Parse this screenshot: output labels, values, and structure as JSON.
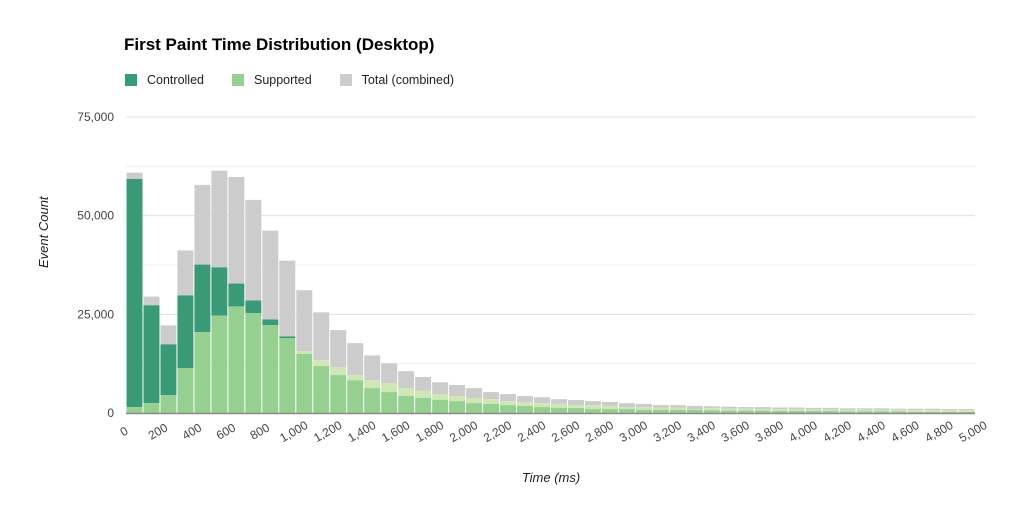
{
  "chart_data": {
    "type": "bar",
    "stacked": true,
    "title": "First Paint Time Distribution (Desktop)",
    "xlabel": "Time (ms)",
    "ylabel": "Event Count",
    "ylim": [
      0,
      75000
    ],
    "yticks": [
      0,
      25000,
      50000,
      75000
    ],
    "ytick_labels": [
      "0",
      "25,000",
      "50,000",
      "75,000"
    ],
    "xlim": [
      0,
      5000
    ],
    "xticks": [
      0,
      200,
      400,
      600,
      800,
      1000,
      1200,
      1400,
      1600,
      1800,
      2000,
      2200,
      2400,
      2600,
      2800,
      3000,
      3200,
      3400,
      3600,
      3800,
      4000,
      4200,
      4400,
      4600,
      4800,
      5000
    ],
    "xtick_labels": [
      "0",
      "200",
      "400",
      "600",
      "800",
      "1,000",
      "1,200",
      "1,400",
      "1,600",
      "1,800",
      "2,000",
      "2,200",
      "2,400",
      "2,600",
      "2,800",
      "3,000",
      "3,200",
      "3,400",
      "3,600",
      "3,800",
      "4,000",
      "4,200",
      "4,400",
      "4,600",
      "4,800",
      "5,000"
    ],
    "bin_width_ms": 100,
    "grid": true,
    "legend_position": "top-left",
    "legend": [
      {
        "name": "Controlled",
        "color": "#3a9a78"
      },
      {
        "name": "Supported",
        "color": "#96d091"
      },
      {
        "name": "Total (combined)",
        "color": "#cccccc"
      }
    ],
    "overlap_color": "#cfe6b6",
    "bins_start_ms": [
      0,
      100,
      200,
      300,
      400,
      500,
      600,
      700,
      800,
      900,
      1000,
      1100,
      1200,
      1300,
      1400,
      1500,
      1600,
      1700,
      1800,
      1900,
      2000,
      2100,
      2200,
      2300,
      2400,
      2500,
      2600,
      2700,
      2800,
      2900,
      3000,
      3100,
      3200,
      3300,
      3400,
      3500,
      3600,
      3700,
      3800,
      3900,
      4000,
      4100,
      4200,
      4300,
      4400,
      4500,
      4600,
      4700,
      4800,
      4900
    ],
    "series": [
      {
        "name": "Supported",
        "values": [
          1500,
          2500,
          4500,
          11400,
          20500,
          24700,
          27000,
          25300,
          22300,
          19000,
          15000,
          11900,
          9600,
          8300,
          6300,
          5300,
          4300,
          3800,
          3300,
          3000,
          2500,
          2300,
          2000,
          1800,
          1500,
          1300,
          1300,
          1000,
          1000,
          1000,
          800,
          800,
          800,
          800,
          700,
          600,
          600,
          600,
          500,
          500,
          500,
          500,
          400,
          400,
          400,
          400,
          300,
          300,
          300,
          300
        ]
      },
      {
        "name": "Supported (overlap band)",
        "values": [
          0,
          0,
          0,
          0,
          0,
          0,
          0,
          0,
          0,
          0,
          700,
          1500,
          2000,
          1300,
          2000,
          2300,
          2000,
          1800,
          1500,
          1300,
          1300,
          1200,
          1000,
          1000,
          1000,
          1000,
          700,
          1000,
          800,
          500,
          700,
          500,
          500,
          200,
          500,
          500,
          500,
          400,
          500,
          400,
          400,
          400,
          400,
          400,
          400,
          400,
          400,
          400,
          400,
          400
        ]
      },
      {
        "name": "Controlled",
        "values": [
          57800,
          24800,
          12900,
          18400,
          17100,
          12200,
          5800,
          3200,
          1400,
          400,
          0,
          0,
          0,
          0,
          0,
          0,
          0,
          0,
          0,
          0,
          0,
          0,
          0,
          0,
          0,
          0,
          0,
          0,
          0,
          0,
          0,
          0,
          0,
          0,
          0,
          0,
          0,
          0,
          0,
          0,
          0,
          0,
          0,
          0,
          0,
          0,
          0,
          0,
          0,
          0
        ]
      },
      {
        "name": "Total (combined)",
        "values": [
          60900,
          29500,
          22200,
          41200,
          57800,
          61400,
          59800,
          54000,
          46200,
          38600,
          31100,
          25500,
          21000,
          17700,
          14600,
          12600,
          10600,
          9100,
          7800,
          7100,
          6300,
          5300,
          4800,
          4300,
          4000,
          3500,
          3300,
          3000,
          2800,
          2500,
          2300,
          2000,
          2000,
          1800,
          1700,
          1600,
          1500,
          1500,
          1400,
          1400,
          1300,
          1300,
          1200,
          1200,
          1200,
          1100,
          1100,
          1100,
          1000,
          1000
        ]
      }
    ]
  }
}
